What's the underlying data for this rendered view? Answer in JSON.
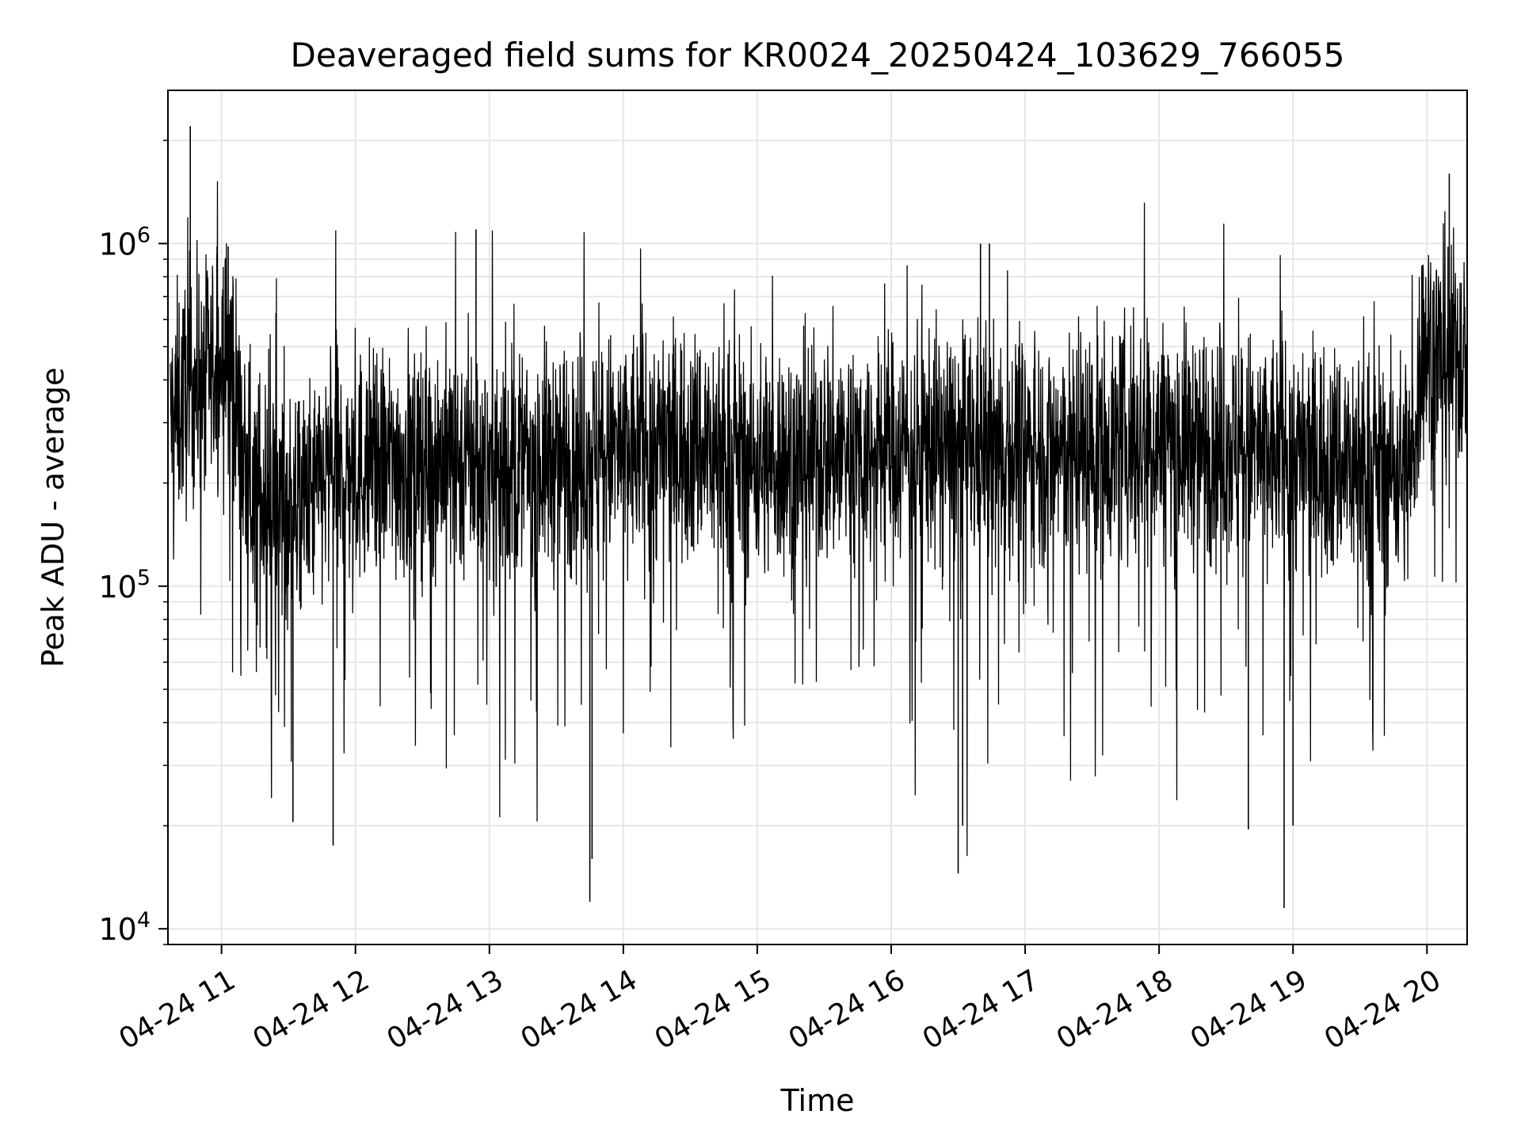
{
  "chart_data": {
    "type": "line",
    "title": "Deaveraged field sums for KR0024_20250424_103629_766055",
    "xlabel": "Time",
    "ylabel": "Peak ADU - average",
    "yscale": "log",
    "grid": true,
    "xlim": [
      "2025-04-24 10:36",
      "2025-04-24 20:18"
    ],
    "ylim": [
      9000,
      2800000
    ],
    "xtick_labels": [
      "04-24 11",
      "04-24 12",
      "04-24 13",
      "04-24 14",
      "04-24 15",
      "04-24 16",
      "04-24 17",
      "04-24 18",
      "04-24 19",
      "04-24 20"
    ],
    "ytick_labels": [
      {
        "base": "10",
        "exp": "4"
      },
      {
        "base": "10",
        "exp": "5"
      },
      {
        "base": "10",
        "exp": "6"
      }
    ],
    "series_color": "#000000",
    "series": [
      {
        "x": [
          "2025-04-24 10:37",
          "2025-04-24 10:45",
          "2025-04-24 10:55",
          "2025-04-24 11:05",
          "2025-04-24 11:10",
          "2025-04-24 11:20",
          "2025-04-24 11:35",
          "2025-04-24 11:50",
          "2025-04-24 12:00",
          "2025-04-24 12:20",
          "2025-04-24 12:40",
          "2025-04-24 13:00",
          "2025-04-24 13:20",
          "2025-04-24 13:40",
          "2025-04-24 14:00",
          "2025-04-24 14:20",
          "2025-04-24 14:40",
          "2025-04-24 15:00",
          "2025-04-24 15:20",
          "2025-04-24 15:40",
          "2025-04-24 16:00",
          "2025-04-24 16:20",
          "2025-04-24 16:40",
          "2025-04-24 17:00",
          "2025-04-24 17:20",
          "2025-04-24 17:40",
          "2025-04-24 18:00",
          "2025-04-24 18:20",
          "2025-04-24 18:40",
          "2025-04-24 19:00",
          "2025-04-24 19:20",
          "2025-04-24 19:40",
          "2025-04-24 19:53",
          "2025-04-24 19:58",
          "2025-04-24 20:05",
          "2025-04-24 20:18"
        ],
        "y": [
          300000,
          380000,
          420000,
          470000,
          200000,
          180000,
          170000,
          210000,
          220000,
          230000,
          240000,
          220000,
          230000,
          240000,
          250000,
          260000,
          250000,
          230000,
          240000,
          250000,
          250000,
          260000,
          250000,
          250000,
          250000,
          260000,
          270000,
          260000,
          250000,
          240000,
          230000,
          220000,
          220000,
          520000,
          480000,
          470000
        ],
        "spikes_high": [
          {
            "x": "2025-04-24 10:46",
            "y": 2200000
          },
          {
            "x": "2025-04-24 10:58",
            "y": 980000
          },
          {
            "x": "2025-04-24 11:03",
            "y": 980000
          },
          {
            "x": "2025-04-24 12:54",
            "y": 1100000
          },
          {
            "x": "2025-04-24 16:40",
            "y": 1000000
          },
          {
            "x": "2025-04-24 16:44",
            "y": 1000000
          },
          {
            "x": "2025-04-24 20:10",
            "y": 1600000
          }
        ],
        "spikes_low": [
          {
            "x": "2025-04-24 11:50",
            "y": 17500
          },
          {
            "x": "2025-04-24 11:32",
            "y": 20500
          },
          {
            "x": "2025-04-24 13:45",
            "y": 12000
          },
          {
            "x": "2025-04-24 13:46",
            "y": 16000
          },
          {
            "x": "2025-04-24 16:30",
            "y": 14500
          },
          {
            "x": "2025-04-24 16:32",
            "y": 20000
          },
          {
            "x": "2025-04-24 18:40",
            "y": 19500
          },
          {
            "x": "2025-04-24 18:56",
            "y": 11500
          },
          {
            "x": "2025-04-24 19:00",
            "y": 20000
          }
        ]
      }
    ]
  }
}
